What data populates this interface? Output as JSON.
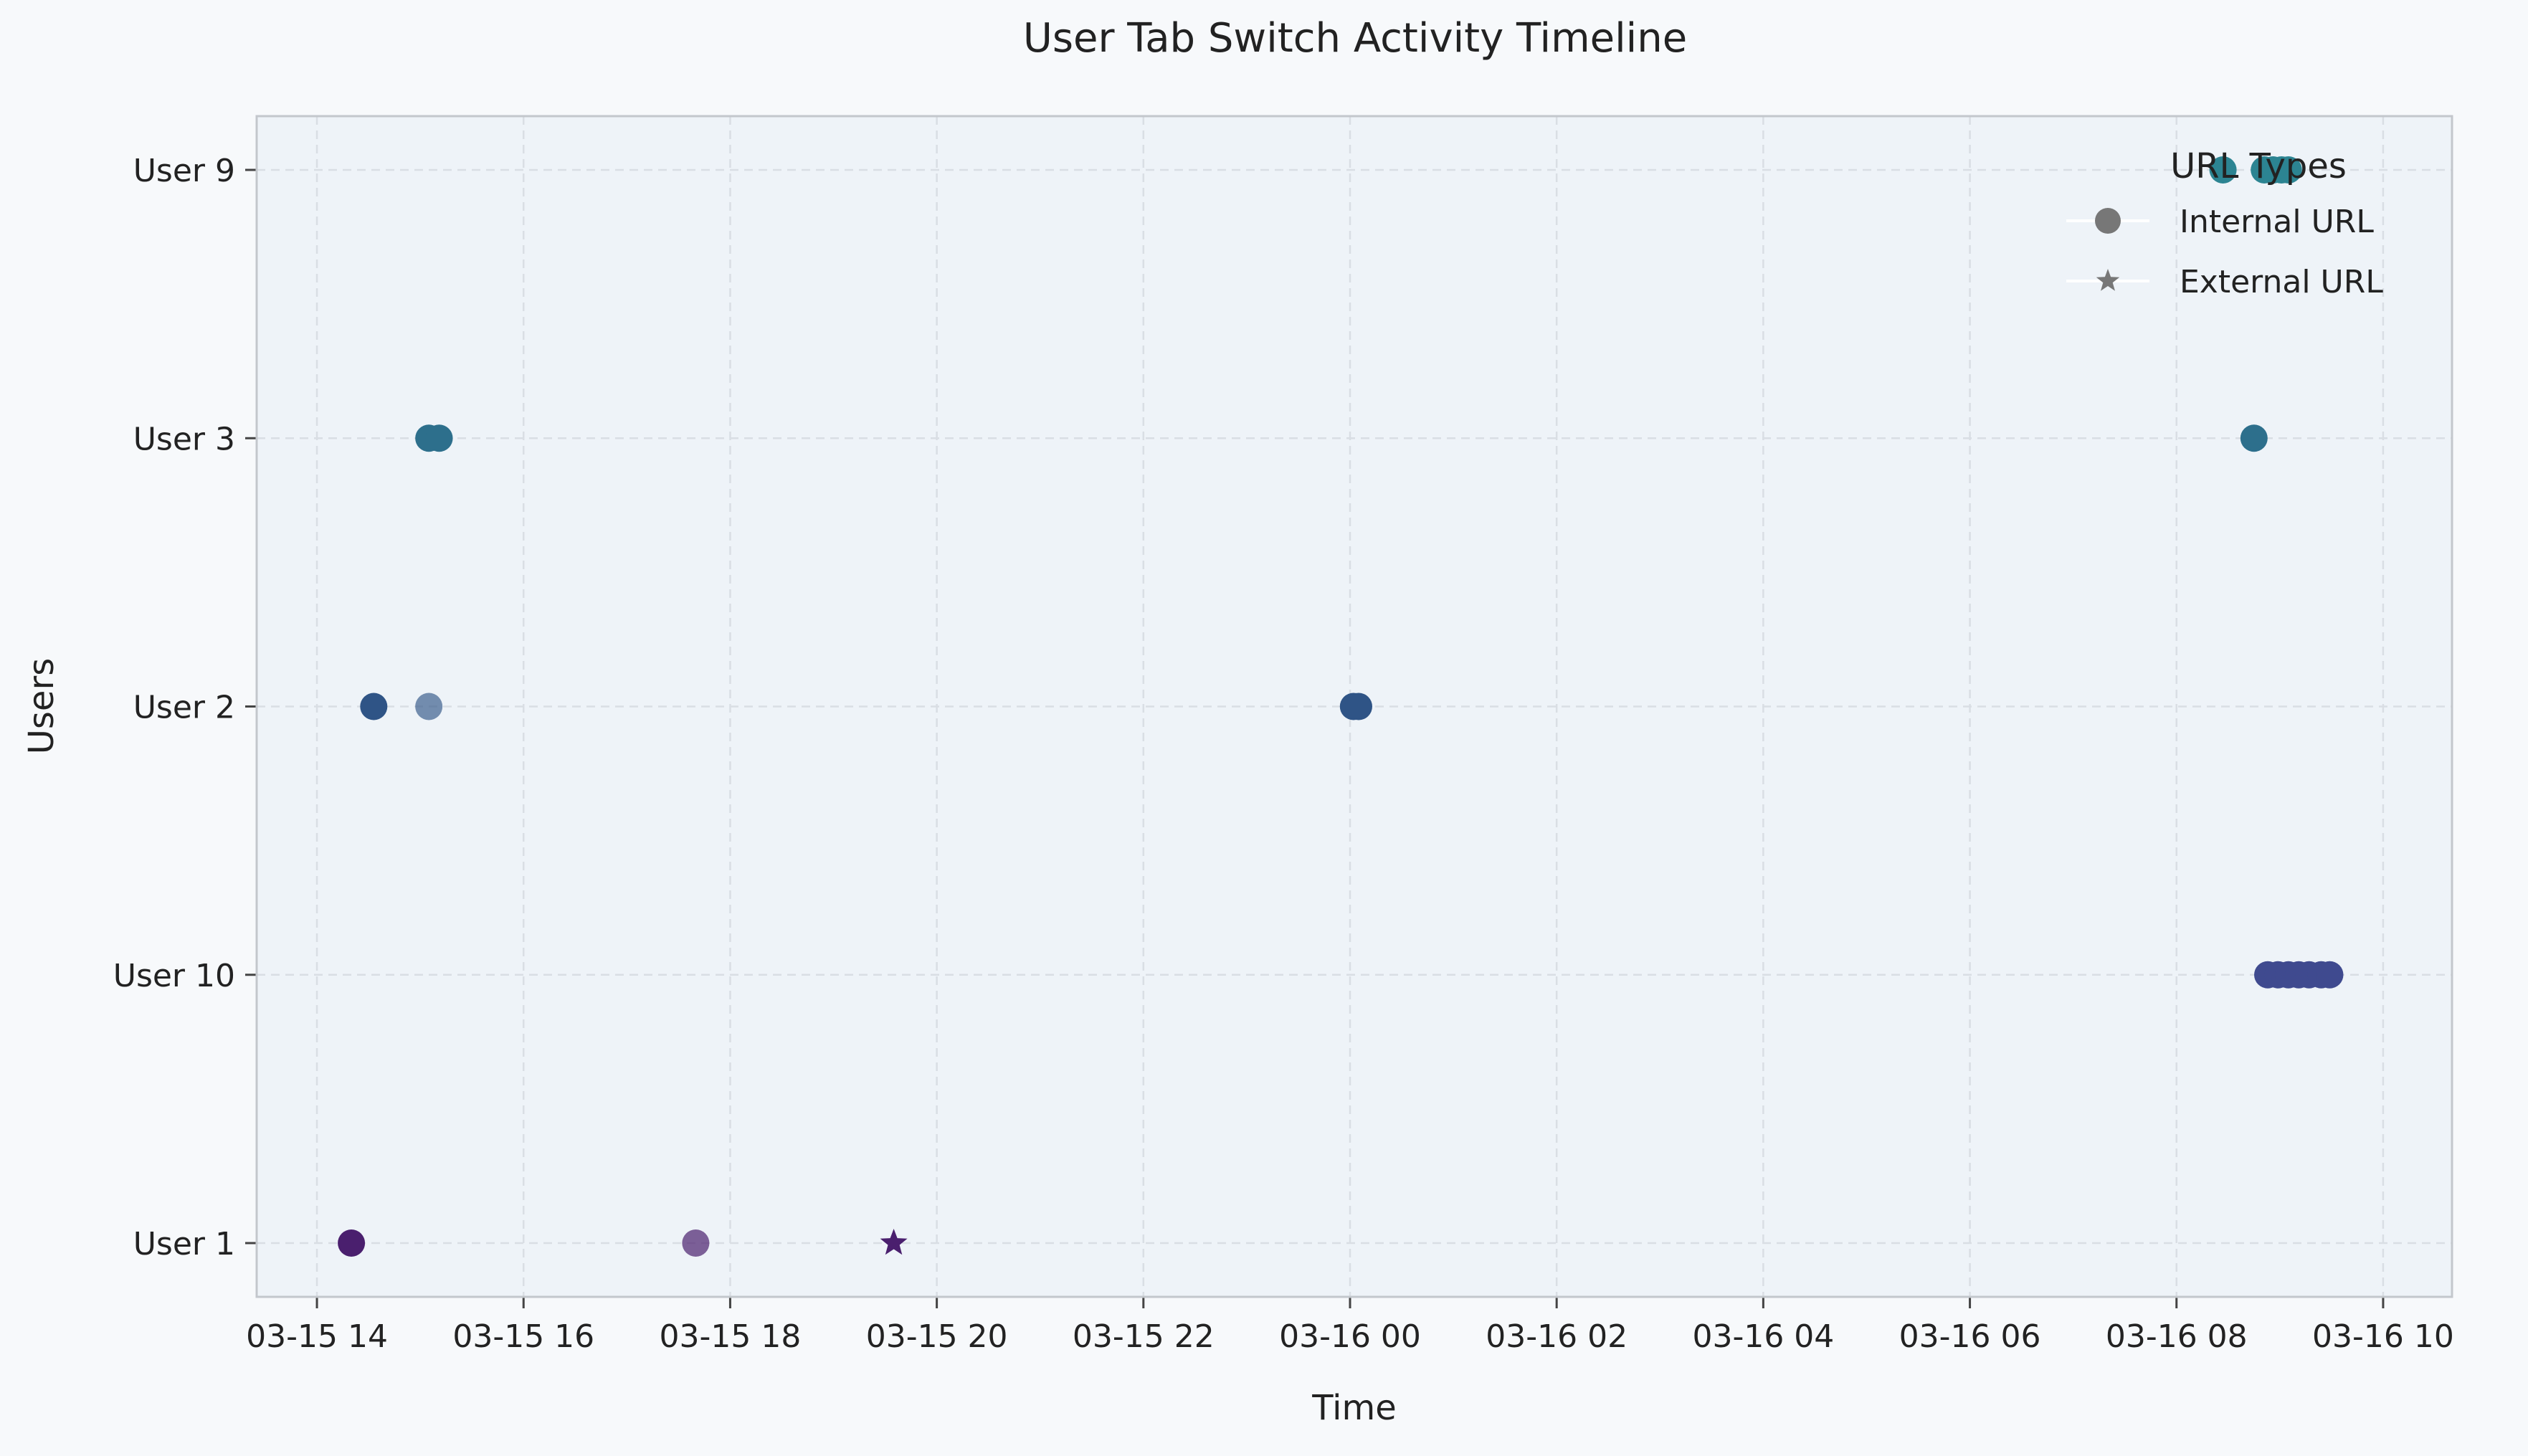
{
  "chart_data": {
    "type": "scatter",
    "title": "User Tab Switch Activity Timeline",
    "xlabel": "Time",
    "ylabel": "Users",
    "x_axis": {
      "kind": "datetime",
      "range": [
        "2024-03-15 13:25",
        "2024-03-16 10:40"
      ],
      "ticks": [
        {
          "value": "2024-03-15 14:00",
          "label": "03-15 14"
        },
        {
          "value": "2024-03-15 16:00",
          "label": "03-15 16"
        },
        {
          "value": "2024-03-15 18:00",
          "label": "03-15 18"
        },
        {
          "value": "2024-03-15 20:00",
          "label": "03-15 20"
        },
        {
          "value": "2024-03-15 22:00",
          "label": "03-15 22"
        },
        {
          "value": "2024-03-16 00:00",
          "label": "03-16 00"
        },
        {
          "value": "2024-03-16 02:00",
          "label": "03-16 02"
        },
        {
          "value": "2024-03-16 04:00",
          "label": "03-16 04"
        },
        {
          "value": "2024-03-16 06:00",
          "label": "03-16 06"
        },
        {
          "value": "2024-03-16 08:00",
          "label": "03-16 08"
        },
        {
          "value": "2024-03-16 10:00",
          "label": "03-16 10"
        }
      ]
    },
    "y_axis": {
      "kind": "category",
      "categories": [
        "User 1",
        "User 10",
        "User 2",
        "User 3",
        "User 9"
      ]
    },
    "grid": true,
    "legend": {
      "title": "URL Types",
      "placement": "top-right",
      "entries": [
        {
          "label": "Internal URL",
          "marker": "circle"
        },
        {
          "label": "External URL",
          "marker": "star"
        }
      ]
    },
    "colors": {
      "User 1": "#4a1f6e",
      "User 10": "#3f4a8f",
      "User 2": "#2f5486",
      "User 3": "#2d6f8c",
      "User 9": "#2c8492",
      "plot_background": "#eef3f8",
      "page_background": "#f7f9fb"
    },
    "points": [
      {
        "user": "User 1",
        "time": "2024-03-15 14:20",
        "url_type": "Internal URL",
        "opacity": 1.0
      },
      {
        "user": "User 1",
        "time": "2024-03-15 17:40",
        "url_type": "Internal URL",
        "opacity": 0.7
      },
      {
        "user": "User 1",
        "time": "2024-03-15 19:35",
        "url_type": "External URL",
        "opacity": 1.0
      },
      {
        "user": "User 2",
        "time": "2024-03-15 14:33",
        "url_type": "Internal URL",
        "opacity": 1.0
      },
      {
        "user": "User 2",
        "time": "2024-03-15 15:05",
        "url_type": "Internal URL",
        "opacity": 0.65
      },
      {
        "user": "User 2",
        "time": "2024-03-16 00:02",
        "url_type": "Internal URL",
        "opacity": 1.0
      },
      {
        "user": "User 2",
        "time": "2024-03-16 00:05",
        "url_type": "Internal URL",
        "opacity": 1.0
      },
      {
        "user": "User 3",
        "time": "2024-03-15 15:05",
        "url_type": "Internal URL",
        "opacity": 1.0
      },
      {
        "user": "User 3",
        "time": "2024-03-15 15:11",
        "url_type": "Internal URL",
        "opacity": 1.0
      },
      {
        "user": "User 3",
        "time": "2024-03-16 08:45",
        "url_type": "Internal URL",
        "opacity": 1.0
      },
      {
        "user": "User 9",
        "time": "2024-03-16 08:27",
        "url_type": "Internal URL",
        "opacity": 1.0
      },
      {
        "user": "User 9",
        "time": "2024-03-16 08:51",
        "url_type": "Internal URL",
        "opacity": 1.0
      },
      {
        "user": "User 9",
        "time": "2024-03-16 08:56",
        "url_type": "Internal URL",
        "opacity": 1.0
      },
      {
        "user": "User 9",
        "time": "2024-03-16 09:01",
        "url_type": "Internal URL",
        "opacity": 1.0
      },
      {
        "user": "User 9",
        "time": "2024-03-16 09:05",
        "url_type": "Internal URL",
        "opacity": 1.0
      },
      {
        "user": "User 10",
        "time": "2024-03-16 08:53",
        "url_type": "Internal URL",
        "opacity": 1.0
      },
      {
        "user": "User 10",
        "time": "2024-03-16 08:59",
        "url_type": "Internal URL",
        "opacity": 1.0
      },
      {
        "user": "User 10",
        "time": "2024-03-16 09:05",
        "url_type": "Internal URL",
        "opacity": 1.0
      },
      {
        "user": "User 10",
        "time": "2024-03-16 09:11",
        "url_type": "Internal URL",
        "opacity": 1.0
      },
      {
        "user": "User 10",
        "time": "2024-03-16 09:17",
        "url_type": "Internal URL",
        "opacity": 1.0
      },
      {
        "user": "User 10",
        "time": "2024-03-16 09:24",
        "url_type": "Internal URL",
        "opacity": 1.0
      },
      {
        "user": "User 10",
        "time": "2024-03-16 09:29",
        "url_type": "Internal URL",
        "opacity": 1.0
      }
    ]
  }
}
